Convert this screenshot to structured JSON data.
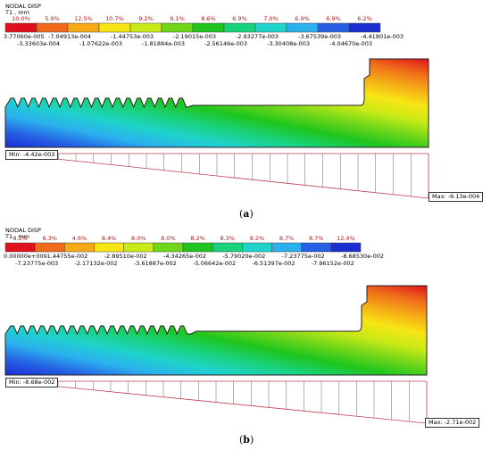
{
  "panels": [
    {
      "id": "a",
      "caption": "a",
      "title_line1": "NODAL DISP",
      "title_line2": "T1 , mm",
      "percentages": [
        "10.0%",
        "5.9%",
        "12.5%",
        "10.7%",
        "9.2%",
        "9.1%",
        "8.6%",
        "6.9%",
        "7.0%",
        "6.9%",
        "6.9%",
        "6.2%"
      ],
      "colors": [
        "#e0101c",
        "#ef6a1a",
        "#f6ab16",
        "#f7e514",
        "#c8ea16",
        "#6fd619",
        "#1ec51e",
        "#1ad27c",
        "#1ed3cb",
        "#2bb0ee",
        "#2560e4",
        "#1a2ed2"
      ],
      "ticks_upper": [
        "3.77060e-005",
        "-7.04913e-004",
        "-1.44753e-003",
        "-2.19015e-003",
        "-2.93277e-003",
        "-3.67539e-003",
        "-4.41801e-003"
      ],
      "ticks_lower": [
        "-3.33603e-004",
        "-1.07622e-003",
        "-1.81884e-003",
        "-2.56146e-003",
        "-3.30408e-003",
        "-4.04670e-003"
      ],
      "min_label": "Min: -4.42e-003",
      "max_label": "Max: -9.13e-004"
    },
    {
      "id": "b",
      "caption": "b",
      "title_line1": "NODAL DISP",
      "title_line2": "T1 , mm",
      "percentages": [
        "9.2%",
        "6.3%",
        "4.6%",
        "8.4%",
        "8.0%",
        "8.0%",
        "8.2%",
        "8.3%",
        "9.2%",
        "8.7%",
        "8.7%",
        "12.4%"
      ],
      "colors": [
        "#e0101c",
        "#ef6a1a",
        "#f6ab16",
        "#f7e514",
        "#c8ea16",
        "#6fd619",
        "#1ec51e",
        "#1ad27c",
        "#1ed3cb",
        "#2bb0ee",
        "#2560e4",
        "#1a2ed2"
      ],
      "ticks_upper": [
        "0.00000e+000",
        "-1.44755e-002",
        "-2.89510e-002",
        "-4.34265e-002",
        "-5.79020e-002",
        "-7.23775e-002",
        "-8.68530e-002"
      ],
      "ticks_lower": [
        "-7.23775e-003",
        "-2.17132e-002",
        "-3.61887e-002",
        "-5.06642e-002",
        "-6.51397e-002",
        "-7.96152e-002"
      ],
      "min_label": "Min: -8.68e-002",
      "max_label": "Max: -2.71e-002"
    }
  ],
  "caption_parens": [
    "(",
    ")"
  ]
}
